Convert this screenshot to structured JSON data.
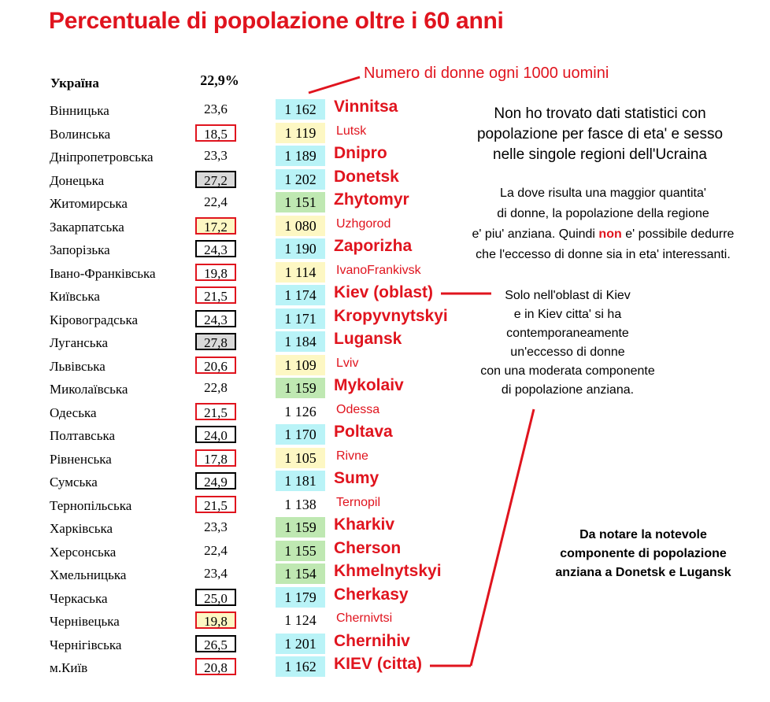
{
  "title": "Percentuale di popolazione oltre i 60 anni",
  "header": {
    "country": "Україна",
    "country_pct": "22,9%",
    "women_label": "Numero di donne ogni 1000 uomini"
  },
  "rows": [
    {
      "region": "Вінницька",
      "pct": "23,6",
      "pct_border": "none",
      "pct_fill": "none",
      "women": "1 162",
      "women_fill": "cyan",
      "city": "Vinnitsa",
      "city_style": "big"
    },
    {
      "region": "Волинська",
      "pct": "18,5",
      "pct_border": "red",
      "pct_fill": "none",
      "women": "1 119",
      "women_fill": "yellow",
      "city": "Lutsk",
      "city_style": "small"
    },
    {
      "region": "Дніпропетровська",
      "pct": "23,3",
      "pct_border": "none",
      "pct_fill": "none",
      "women": "1 189",
      "women_fill": "cyan",
      "city": "Dnipro",
      "city_style": "big"
    },
    {
      "region": "Донецька",
      "pct": "27,2",
      "pct_border": "black",
      "pct_fill": "grey",
      "women": "1 202",
      "women_fill": "cyan",
      "city": "Donetsk",
      "city_style": "big"
    },
    {
      "region": "Житомирська",
      "pct": "22,4",
      "pct_border": "none",
      "pct_fill": "none",
      "women": "1 151",
      "women_fill": "green",
      "city": "Zhytomyr",
      "city_style": "big"
    },
    {
      "region": "Закарпатська",
      "pct": "17,2",
      "pct_border": "red",
      "pct_fill": "yellow",
      "women": "1 080",
      "women_fill": "yellow",
      "city": "Uzhgorod",
      "city_style": "small"
    },
    {
      "region": "Запорізька",
      "pct": "24,3",
      "pct_border": "black",
      "pct_fill": "none",
      "women": "1 190",
      "women_fill": "cyan",
      "city": "Zaporizha",
      "city_style": "big"
    },
    {
      "region": "Івано-Франківська",
      "pct": "19,8",
      "pct_border": "red",
      "pct_fill": "none",
      "women": "1 114",
      "women_fill": "yellow",
      "city": "IvanoFrankivsk",
      "city_style": "small"
    },
    {
      "region": "Київська",
      "pct": "21,5",
      "pct_border": "red",
      "pct_fill": "none",
      "women": "1 174",
      "women_fill": "cyan",
      "city": "Kiev (oblast)",
      "city_style": "big"
    },
    {
      "region": "Кіровоградська",
      "pct": "24,3",
      "pct_border": "black",
      "pct_fill": "none",
      "women": "1 171",
      "women_fill": "cyan",
      "city": "Kropyvnytskyi",
      "city_style": "big"
    },
    {
      "region": "Луганська",
      "pct": "27,8",
      "pct_border": "black",
      "pct_fill": "grey",
      "women": "1 184",
      "women_fill": "cyan",
      "city": "Lugansk",
      "city_style": "big"
    },
    {
      "region": "Львівська",
      "pct": "20,6",
      "pct_border": "red",
      "pct_fill": "none",
      "women": "1 109",
      "women_fill": "yellow",
      "city": "Lviv",
      "city_style": "small"
    },
    {
      "region": "Миколаївська",
      "pct": "22,8",
      "pct_border": "none",
      "pct_fill": "none",
      "women": "1 159",
      "women_fill": "green",
      "city": "Mykolaiv",
      "city_style": "big"
    },
    {
      "region": "Одеська",
      "pct": "21,5",
      "pct_border": "red",
      "pct_fill": "none",
      "women": "1 126",
      "women_fill": "none",
      "city": "Odessa",
      "city_style": "small"
    },
    {
      "region": "Полтавська",
      "pct": "24,0",
      "pct_border": "black",
      "pct_fill": "none",
      "women": "1 170",
      "women_fill": "cyan",
      "city": "Poltava",
      "city_style": "big"
    },
    {
      "region": "Рівненська",
      "pct": "17,8",
      "pct_border": "red",
      "pct_fill": "none",
      "women": "1 105",
      "women_fill": "yellow",
      "city": "Rivne",
      "city_style": "small"
    },
    {
      "region": "Сумська",
      "pct": "24,9",
      "pct_border": "black",
      "pct_fill": "none",
      "women": "1 181",
      "women_fill": "cyan",
      "city": "Sumy",
      "city_style": "big"
    },
    {
      "region": "Тернопільська",
      "pct": "21,5",
      "pct_border": "red",
      "pct_fill": "none",
      "women": "1 138",
      "women_fill": "none",
      "city": "Ternopil",
      "city_style": "small"
    },
    {
      "region": "Харківська",
      "pct": "23,3",
      "pct_border": "none",
      "pct_fill": "none",
      "women": "1 159",
      "women_fill": "green",
      "city": "Kharkiv",
      "city_style": "big"
    },
    {
      "region": "Херсонська",
      "pct": "22,4",
      "pct_border": "none",
      "pct_fill": "none",
      "women": "1 155",
      "women_fill": "green",
      "city": "Cherson",
      "city_style": "big"
    },
    {
      "region": "Хмельницька",
      "pct": "23,4",
      "pct_border": "none",
      "pct_fill": "none",
      "women": "1 154",
      "women_fill": "green",
      "city": "Khmelnytskyi",
      "city_style": "big"
    },
    {
      "region": "Черкаська",
      "pct": "25,0",
      "pct_border": "black",
      "pct_fill": "none",
      "women": "1 179",
      "women_fill": "cyan",
      "city": "Cherkasy",
      "city_style": "big"
    },
    {
      "region": "Чернівецька",
      "pct": "19,8",
      "pct_border": "red",
      "pct_fill": "yellow",
      "women": "1 124",
      "women_fill": "none",
      "city": "Chernivtsi",
      "city_style": "small"
    },
    {
      "region": "Чернігівська",
      "pct": "26,5",
      "pct_border": "black",
      "pct_fill": "none",
      "women": "1 201",
      "women_fill": "cyan",
      "city": "Chernihiv",
      "city_style": "big"
    },
    {
      "region": "м.Київ",
      "pct": "20,8",
      "pct_border": "red",
      "pct_fill": "none",
      "women": "1 162",
      "women_fill": "cyan",
      "city": "KIEV (citta)",
      "city_style": "big"
    }
  ],
  "notes": {
    "no_data": [
      "Non ho trovato dati statistici con",
      "popolazione per fasce di eta' e sesso",
      "nelle singole regioni dell'Ucraina"
    ],
    "deduction": {
      "line1": "La dove risulta una maggior quantita'",
      "line2": "di donne, la popolazione della regione",
      "line3_pre": "e' piu' anziana. Quindi ",
      "line3_hl": "non",
      "line3_post": " e' possibile dedurre",
      "line4": "che l'eccesso di donne sia in eta' interessanti."
    },
    "kiev": [
      "Solo nell'oblast di Kiev",
      "e in Kiev citta' si ha",
      "contemporaneamente",
      "un'eccesso di donne",
      "con una moderata componente",
      "di popolazione anziana."
    ],
    "donetsk": [
      "Da notare la notevole",
      "componente di popolazione",
      "anziana a Donetsk e Lugansk"
    ]
  },
  "colors": {
    "accent_red": "#e0141e",
    "cyan": "#b9f3f7",
    "yellow": "#fdf7c3",
    "green": "#bfe8b2",
    "grey": "#d9d9d9"
  }
}
